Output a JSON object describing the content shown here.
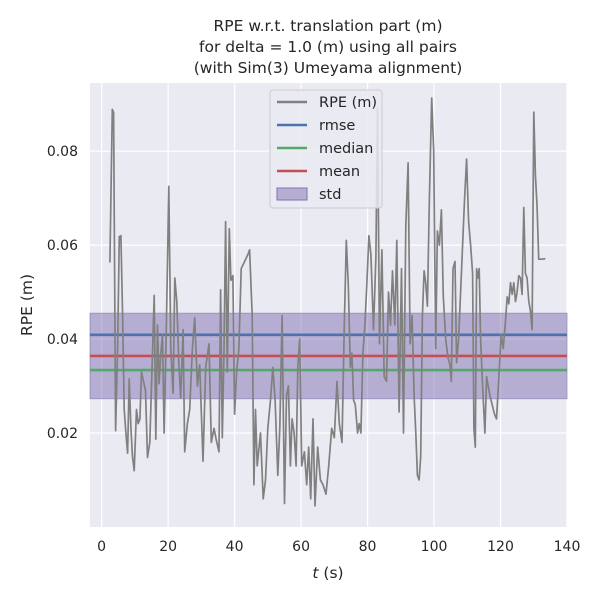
{
  "chart_data": {
    "type": "line",
    "title_lines": [
      "RPE w.r.t. translation part (m)",
      "for delta = 1.0 (m) using all pairs",
      "(with Sim(3) Umeyama alignment)"
    ],
    "xlabel": "t (s)",
    "xlabel_italic_part": "t",
    "xlabel_rest": " (s)",
    "ylabel": "RPE (m)",
    "xlim": [
      -3.5,
      140
    ],
    "ylim": [
      0.0,
      0.0945
    ],
    "xticks": [
      0,
      20,
      40,
      60,
      80,
      100,
      120,
      140
    ],
    "xtick_labels": [
      "0",
      "20",
      "40",
      "60",
      "80",
      "100",
      "120",
      "140"
    ],
    "yticks": [
      0.02,
      0.04,
      0.06,
      0.08
    ],
    "ytick_labels": [
      "0.02",
      "0.04",
      "0.06",
      "0.08"
    ],
    "grid": true,
    "legend_position": "top-center",
    "series": [
      {
        "name": "RPE (m)",
        "color": "#808080",
        "points": [
          [
            2.5,
            0.0563
          ],
          [
            3.2,
            0.0889
          ],
          [
            3.6,
            0.0882
          ],
          [
            4.2,
            0.0205
          ],
          [
            4.8,
            0.038
          ],
          [
            5.3,
            0.0618
          ],
          [
            5.8,
            0.062
          ],
          [
            6.3,
            0.045
          ],
          [
            6.8,
            0.025
          ],
          [
            7.3,
            0.02
          ],
          [
            7.8,
            0.0157
          ],
          [
            8.3,
            0.0315
          ],
          [
            8.8,
            0.021
          ],
          [
            9.3,
            0.015
          ],
          [
            9.8,
            0.012
          ],
          [
            10.5,
            0.025
          ],
          [
            11.0,
            0.022
          ],
          [
            11.5,
            0.023
          ],
          [
            12.0,
            0.033
          ],
          [
            12.6,
            0.031
          ],
          [
            13.2,
            0.029
          ],
          [
            13.8,
            0.0148
          ],
          [
            14.5,
            0.018
          ],
          [
            15.2,
            0.035
          ],
          [
            15.8,
            0.0493
          ],
          [
            16.3,
            0.0187
          ],
          [
            16.8,
            0.043
          ],
          [
            17.3,
            0.0305
          ],
          [
            17.8,
            0.037
          ],
          [
            18.3,
            0.041
          ],
          [
            18.8,
            0.02
          ],
          [
            19.5,
            0.044
          ],
          [
            20.2,
            0.0725
          ],
          [
            20.8,
            0.038
          ],
          [
            21.5,
            0.0285
          ],
          [
            22.0,
            0.053
          ],
          [
            22.6,
            0.048
          ],
          [
            23.2,
            0.035
          ],
          [
            23.8,
            0.0275
          ],
          [
            24.5,
            0.042
          ],
          [
            25.0,
            0.016
          ],
          [
            25.8,
            0.022
          ],
          [
            26.5,
            0.025
          ],
          [
            27.3,
            0.038
          ],
          [
            28.0,
            0.0445
          ],
          [
            28.8,
            0.03
          ],
          [
            29.5,
            0.0345
          ],
          [
            30.5,
            0.014
          ],
          [
            31.3,
            0.034
          ],
          [
            32.3,
            0.039
          ],
          [
            33.0,
            0.018
          ],
          [
            33.8,
            0.021
          ],
          [
            34.5,
            0.0185
          ],
          [
            35.3,
            0.016
          ],
          [
            35.8,
            0.0505
          ],
          [
            36.3,
            0.019
          ],
          [
            36.8,
            0.0375
          ],
          [
            37.3,
            0.065
          ],
          [
            37.8,
            0.033
          ],
          [
            38.4,
            0.0635
          ],
          [
            38.9,
            0.0525
          ],
          [
            39.5,
            0.0535
          ],
          [
            40.0,
            0.024
          ],
          [
            40.6,
            0.033
          ],
          [
            41.3,
            0.038
          ],
          [
            42.0,
            0.055
          ],
          [
            43.0,
            0.0565
          ],
          [
            44.0,
            0.058
          ],
          [
            44.5,
            0.059
          ],
          [
            45.3,
            0.045
          ],
          [
            45.8,
            0.009
          ],
          [
            46.3,
            0.025
          ],
          [
            46.8,
            0.013
          ],
          [
            47.8,
            0.02
          ],
          [
            48.6,
            0.006
          ],
          [
            49.3,
            0.01
          ],
          [
            50.0,
            0.021
          ],
          [
            50.8,
            0.027
          ],
          [
            51.5,
            0.034
          ],
          [
            52.2,
            0.027
          ],
          [
            53.0,
            0.011
          ],
          [
            53.6,
            0.021
          ],
          [
            54.3,
            0.045
          ],
          [
            55.0,
            0.005
          ],
          [
            55.6,
            0.028
          ],
          [
            56.2,
            0.03
          ],
          [
            56.8,
            0.013
          ],
          [
            57.3,
            0.023
          ],
          [
            57.9,
            0.02
          ],
          [
            58.5,
            0.013
          ],
          [
            59.0,
            0.034
          ],
          [
            59.6,
            0.04
          ],
          [
            60.2,
            0.013
          ],
          [
            61.0,
            0.016
          ],
          [
            61.7,
            0.009
          ],
          [
            62.3,
            0.017
          ],
          [
            62.9,
            0.006
          ],
          [
            63.6,
            0.023
          ],
          [
            64.2,
            0.0045
          ],
          [
            65.0,
            0.017
          ],
          [
            65.8,
            0.01
          ],
          [
            66.6,
            0.009
          ],
          [
            67.5,
            0.007
          ],
          [
            68.3,
            0.013
          ],
          [
            69.2,
            0.021
          ],
          [
            70.0,
            0.019
          ],
          [
            70.8,
            0.031
          ],
          [
            71.5,
            0.022
          ],
          [
            72.3,
            0.018
          ],
          [
            73.0,
            0.043
          ],
          [
            73.6,
            0.061
          ],
          [
            74.2,
            0.0515
          ],
          [
            74.8,
            0.034
          ],
          [
            75.3,
            0.037
          ],
          [
            75.8,
            0.027
          ],
          [
            76.3,
            0.026
          ],
          [
            77.0,
            0.02
          ],
          [
            77.5,
            0.022
          ],
          [
            78.0,
            0.02
          ],
          [
            78.6,
            0.037
          ],
          [
            79.2,
            0.043
          ],
          [
            79.8,
            0.052
          ],
          [
            80.4,
            0.062
          ],
          [
            81.0,
            0.058
          ],
          [
            81.8,
            0.042
          ],
          [
            82.5,
            0.0575
          ],
          [
            83.0,
            0.089
          ],
          [
            83.6,
            0.039
          ],
          [
            84.3,
            0.059
          ],
          [
            85.0,
            0.032
          ],
          [
            85.7,
            0.031
          ],
          [
            86.3,
            0.05
          ],
          [
            86.9,
            0.043
          ],
          [
            87.5,
            0.0545
          ],
          [
            88.2,
            0.043
          ],
          [
            88.8,
            0.061
          ],
          [
            89.5,
            0.0245
          ],
          [
            90.2,
            0.055
          ],
          [
            90.8,
            0.02
          ],
          [
            91.5,
            0.064
          ],
          [
            92.2,
            0.0775
          ],
          [
            92.8,
            0.039
          ],
          [
            93.4,
            0.045
          ],
          [
            94.0,
            0.028
          ],
          [
            94.5,
            0.02
          ],
          [
            95.0,
            0.011
          ],
          [
            95.5,
            0.01
          ],
          [
            96.0,
            0.015
          ],
          [
            96.5,
            0.045
          ],
          [
            97.0,
            0.0545
          ],
          [
            97.5,
            0.052
          ],
          [
            98.0,
            0.047
          ],
          [
            98.6,
            0.07
          ],
          [
            99.3,
            0.0913
          ],
          [
            99.9,
            0.08
          ],
          [
            100.5,
            0.038
          ],
          [
            101.0,
            0.063
          ],
          [
            101.6,
            0.06
          ],
          [
            102.2,
            0.0675
          ],
          [
            102.8,
            0.049
          ],
          [
            103.5,
            0.04
          ],
          [
            104.2,
            0.036
          ],
          [
            104.8,
            0.0345
          ],
          [
            105.2,
            0.031
          ],
          [
            105.7,
            0.055
          ],
          [
            106.3,
            0.0565
          ],
          [
            106.8,
            0.035
          ],
          [
            107.4,
            0.04
          ],
          [
            108.0,
            0.05
          ],
          [
            108.6,
            0.06
          ],
          [
            109.2,
            0.07
          ],
          [
            109.8,
            0.0783
          ],
          [
            110.4,
            0.065
          ],
          [
            111.0,
            0.06
          ],
          [
            111.6,
            0.054
          ],
          [
            112.0,
            0.021
          ],
          [
            112.4,
            0.017
          ],
          [
            112.8,
            0.055
          ],
          [
            113.2,
            0.053
          ],
          [
            113.6,
            0.055
          ],
          [
            114.0,
            0.04
          ],
          [
            114.6,
            0.03
          ],
          [
            115.3,
            0.02
          ],
          [
            115.8,
            0.032
          ],
          [
            116.3,
            0.03
          ],
          [
            116.8,
            0.028
          ],
          [
            117.5,
            0.026
          ],
          [
            118.2,
            0.024
          ],
          [
            118.8,
            0.023
          ],
          [
            119.5,
            0.032
          ],
          [
            120.2,
            0.041
          ],
          [
            120.8,
            0.038
          ],
          [
            121.4,
            0.043
          ],
          [
            122.0,
            0.049
          ],
          [
            122.5,
            0.0475
          ],
          [
            123.0,
            0.052
          ],
          [
            123.5,
            0.0495
          ],
          [
            124.0,
            0.052
          ],
          [
            124.5,
            0.048
          ],
          [
            125.0,
            0.05
          ],
          [
            125.5,
            0.0535
          ],
          [
            126.0,
            0.053
          ],
          [
            126.5,
            0.0495
          ],
          [
            127.0,
            0.068
          ],
          [
            127.5,
            0.054
          ],
          [
            128.0,
            0.053
          ],
          [
            128.5,
            0.048
          ],
          [
            129.0,
            0.046
          ],
          [
            129.5,
            0.042
          ],
          [
            130.0,
            0.0883
          ],
          [
            130.5,
            0.075
          ],
          [
            131.0,
            0.068
          ],
          [
            131.5,
            0.057
          ],
          [
            132.5,
            0.057
          ],
          [
            133.5,
            0.0571
          ]
        ]
      }
    ],
    "stats": [
      {
        "name": "rmse",
        "value": 0.0409,
        "color": "#4c72b0"
      },
      {
        "name": "median",
        "value": 0.0334,
        "color": "#55a868"
      },
      {
        "name": "mean",
        "value": 0.0364,
        "color": "#c44e52"
      }
    ],
    "std": {
      "name": "std",
      "low": 0.0273,
      "high": 0.0455,
      "color": "#8172b2"
    },
    "legend": [
      "RPE (m)",
      "rmse",
      "median",
      "mean",
      "std"
    ],
    "colors": {
      "plot_background": "#eaeaf2",
      "grid": "#ffffff"
    }
  }
}
